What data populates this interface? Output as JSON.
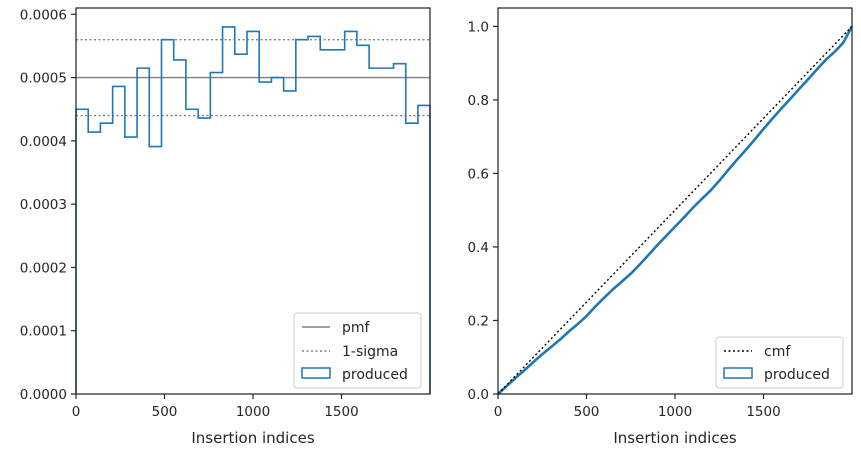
{
  "chart_data": [
    {
      "type": "step",
      "xlabel": "Insertion indices",
      "ylabel": "",
      "xlim": [
        0,
        2000
      ],
      "ylim": [
        0,
        0.00061
      ],
      "xticks": [
        0,
        500,
        1000,
        1500
      ],
      "xtick_labels": [
        "0",
        "500",
        "1000",
        "1500"
      ],
      "yticks": [
        0,
        0.0001,
        0.0002,
        0.0003,
        0.0004,
        0.0005,
        0.0006
      ],
      "ytick_labels": [
        "0.0000",
        "0.0001",
        "0.0002",
        "0.0003",
        "0.0004",
        "0.0005",
        "0.0006"
      ],
      "legend": {
        "location": "lower-right",
        "entries": [
          "pmf",
          "1-sigma",
          "produced"
        ]
      },
      "pmf": {
        "name": "pmf",
        "value": 0.0005,
        "color": "#808080"
      },
      "sigma": {
        "name": "1-sigma",
        "upper": 0.00056,
        "lower": 0.00044,
        "color": "#808080"
      },
      "histogram": {
        "name": "produced",
        "color": "#1f77b4",
        "bin_edges": [
          0,
          69,
          138,
          207,
          276,
          345,
          414,
          483,
          552,
          621,
          690,
          759,
          828,
          897,
          966,
          1035,
          1104,
          1173,
          1242,
          1311,
          1380,
          1449,
          1518,
          1587,
          1656,
          1725,
          1794,
          1863,
          1932,
          2000
        ],
        "values": [
          0.00045,
          0.000414,
          0.000428,
          0.000486,
          0.000406,
          0.000515,
          0.000391,
          0.00056,
          0.000528,
          0.00045,
          0.000436,
          0.000508,
          0.00058,
          0.000537,
          0.000573,
          0.000493,
          0.0005,
          0.000479,
          0.00056,
          0.000565,
          0.000544,
          0.000544,
          0.000573,
          0.000551,
          0.000515,
          0.000515,
          0.000522,
          0.000428,
          0.000456
        ]
      }
    },
    {
      "type": "line",
      "xlabel": "Insertion indices",
      "ylabel": "",
      "xlim": [
        0,
        2000
      ],
      "ylim": [
        0,
        1.05
      ],
      "xticks": [
        0,
        500,
        1000,
        1500
      ],
      "xtick_labels": [
        "0",
        "500",
        "1000",
        "1500"
      ],
      "yticks": [
        0,
        0.2,
        0.4,
        0.6,
        0.8,
        1.0
      ],
      "ytick_labels": [
        "0.0",
        "0.2",
        "0.4",
        "0.6",
        "0.8",
        "1.0"
      ],
      "legend": {
        "location": "lower-right",
        "entries": [
          "cmf",
          "produced"
        ]
      },
      "cmf": {
        "name": "cmf",
        "x": [
          0,
          2000
        ],
        "y": [
          0,
          1.0
        ],
        "color": "#000000"
      },
      "produced": {
        "name": "produced",
        "color": "#1f77b4",
        "x": [
          0,
          50,
          100,
          150,
          200,
          250,
          300,
          350,
          400,
          450,
          500,
          550,
          600,
          650,
          700,
          750,
          800,
          850,
          900,
          950,
          1000,
          1050,
          1100,
          1150,
          1200,
          1250,
          1300,
          1350,
          1400,
          1450,
          1500,
          1550,
          1600,
          1650,
          1700,
          1750,
          1800,
          1850,
          1900,
          1950,
          2000
        ],
        "y": [
          0,
          0.022,
          0.044,
          0.065,
          0.087,
          0.108,
          0.128,
          0.148,
          0.17,
          0.19,
          0.212,
          0.238,
          0.262,
          0.285,
          0.306,
          0.327,
          0.352,
          0.378,
          0.405,
          0.43,
          0.455,
          0.48,
          0.506,
          0.53,
          0.553,
          0.58,
          0.609,
          0.637,
          0.664,
          0.692,
          0.721,
          0.749,
          0.776,
          0.802,
          0.829,
          0.855,
          0.882,
          0.908,
          0.93,
          0.955,
          1.0
        ]
      }
    }
  ]
}
